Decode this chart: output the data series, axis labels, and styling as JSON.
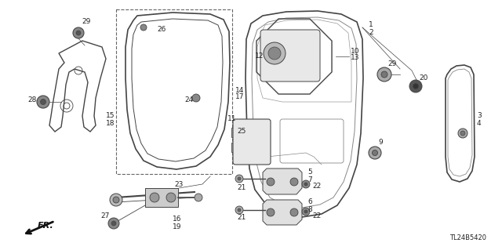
{
  "background_color": "#ffffff",
  "diagram_code": "TL24B5420",
  "figsize": [
    6.4,
    3.19
  ],
  "dpi": 100,
  "label_color": "#222222",
  "label_fontsize": 6.5,
  "line_color": "#444444"
}
